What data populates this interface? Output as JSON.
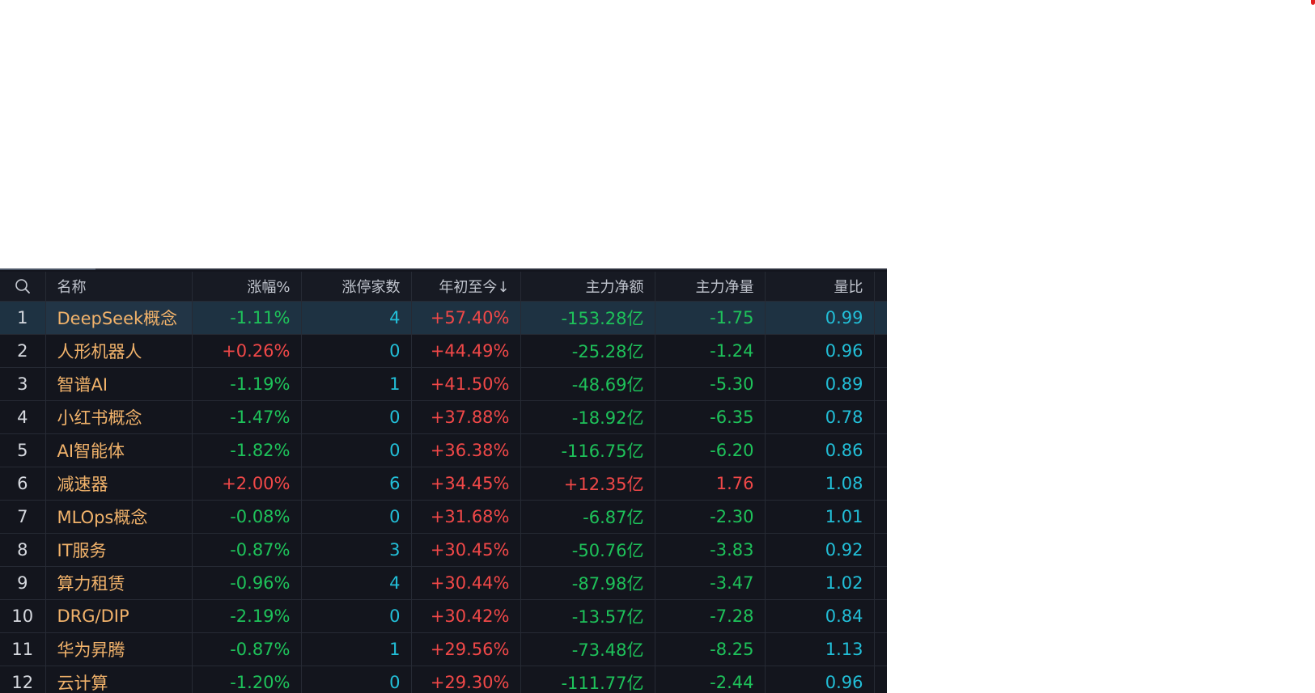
{
  "header": {
    "name": "名称",
    "change_pct": "涨幅%",
    "limit_up_count": "涨停家数",
    "ytd": "年初至今↓",
    "main_net_amount": "主力净额",
    "main_net_volume": "主力净量",
    "volume_ratio": "量比"
  },
  "colors": {
    "up": "#f04848",
    "down": "#1ec25a",
    "name": "#f2b36b",
    "neutral_value": "#22bfd8",
    "selected_row": "#1e3242"
  },
  "rows": [
    {
      "idx": "1",
      "name": "DeepSeek概念",
      "change_pct": "-1.11%",
      "limit_up": "4",
      "ytd": "+57.40%",
      "net_amount": "-153.28亿",
      "net_volume": "-1.75",
      "ratio": "0.99"
    },
    {
      "idx": "2",
      "name": "人形机器人",
      "change_pct": "+0.26%",
      "limit_up": "0",
      "ytd": "+44.49%",
      "net_amount": "-25.28亿",
      "net_volume": "-1.24",
      "ratio": "0.96"
    },
    {
      "idx": "3",
      "name": "智谱AI",
      "change_pct": "-1.19%",
      "limit_up": "1",
      "ytd": "+41.50%",
      "net_amount": "-48.69亿",
      "net_volume": "-5.30",
      "ratio": "0.89"
    },
    {
      "idx": "4",
      "name": "小红书概念",
      "change_pct": "-1.47%",
      "limit_up": "0",
      "ytd": "+37.88%",
      "net_amount": "-18.92亿",
      "net_volume": "-6.35",
      "ratio": "0.78"
    },
    {
      "idx": "5",
      "name": "AI智能体",
      "change_pct": "-1.82%",
      "limit_up": "0",
      "ytd": "+36.38%",
      "net_amount": "-116.75亿",
      "net_volume": "-6.20",
      "ratio": "0.86"
    },
    {
      "idx": "6",
      "name": "减速器",
      "change_pct": "+2.00%",
      "limit_up": "6",
      "ytd": "+34.45%",
      "net_amount": "+12.35亿",
      "net_volume": "1.76",
      "ratio": "1.08"
    },
    {
      "idx": "7",
      "name": "MLOps概念",
      "change_pct": "-0.08%",
      "limit_up": "0",
      "ytd": "+31.68%",
      "net_amount": "-6.87亿",
      "net_volume": "-2.30",
      "ratio": "1.01"
    },
    {
      "idx": "8",
      "name": "IT服务",
      "change_pct": "-0.87%",
      "limit_up": "3",
      "ytd": "+30.45%",
      "net_amount": "-50.76亿",
      "net_volume": "-3.83",
      "ratio": "0.92"
    },
    {
      "idx": "9",
      "name": "算力租赁",
      "change_pct": "-0.96%",
      "limit_up": "4",
      "ytd": "+30.44%",
      "net_amount": "-87.98亿",
      "net_volume": "-3.47",
      "ratio": "1.02"
    },
    {
      "idx": "10",
      "name": "DRG/DIP",
      "change_pct": "-2.19%",
      "limit_up": "0",
      "ytd": "+30.42%",
      "net_amount": "-13.57亿",
      "net_volume": "-7.28",
      "ratio": "0.84"
    },
    {
      "idx": "11",
      "name": "华为昇腾",
      "change_pct": "-0.87%",
      "limit_up": "1",
      "ytd": "+29.56%",
      "net_amount": "-73.48亿",
      "net_volume": "-8.25",
      "ratio": "1.13"
    },
    {
      "idx": "12",
      "name": "云计算",
      "change_pct": "-1.20%",
      "limit_up": "0",
      "ytd": "+29.30%",
      "net_amount": "-111.77亿",
      "net_volume": "-2.44",
      "ratio": "0.96"
    }
  ]
}
